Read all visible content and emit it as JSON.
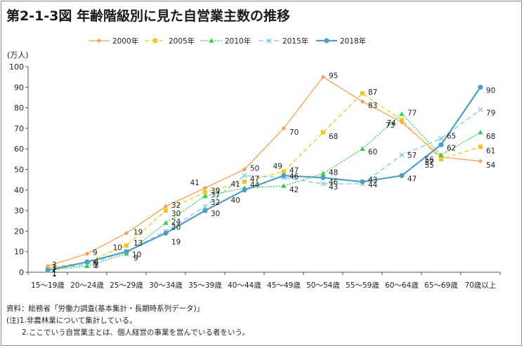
{
  "title": "第2-1-3図 年齢階級別に見た自営業主数の推移",
  "chart_data": {
    "type": "line",
    "ylabel": "(万人)",
    "ylim": [
      0,
      100
    ],
    "yticks": [
      0,
      10,
      20,
      30,
      40,
      50,
      60,
      70,
      80,
      90,
      100
    ],
    "categories": [
      "15～19歳",
      "20～24歳",
      "25～29歳",
      "30～34歳",
      "35～39歳",
      "40～44歳",
      "45～49歳",
      "50～54歳",
      "55～59歳",
      "60～64歳",
      "65～69歳",
      "70歳以上"
    ],
    "legend_position": "top",
    "series": [
      {
        "name": "2000年",
        "color": "#f4a15d",
        "dash": "",
        "marker": "diamond",
        "width": 1.3,
        "values": [
          3,
          9,
          19,
          32,
          41,
          50,
          70,
          95,
          83,
          73,
          56,
          54
        ]
      },
      {
        "name": "2005年",
        "color": "#f7c61b",
        "dash": "6,4",
        "marker": "square",
        "width": 1.3,
        "values": [
          2,
          5,
          13,
          30,
          39,
          44,
          49,
          68,
          87,
          74,
          55,
          61
        ]
      },
      {
        "name": "2010年",
        "color": "#2fd14a",
        "dash": "2,2",
        "marker": "triangle",
        "width": 1.3,
        "values": [
          1,
          3,
          9,
          24,
          37,
          41,
          42,
          48,
          60,
          77,
          57,
          68
        ]
      },
      {
        "name": "2015年",
        "color": "#7fc7e8",
        "dash": "7,4",
        "marker": "x",
        "width": 1.3,
        "values": [
          1,
          4,
          10,
          20,
          32,
          47,
          46,
          43,
          43,
          57,
          65,
          79
        ]
      },
      {
        "name": "2018年",
        "color": "#4f9ec4",
        "dash": "",
        "marker": "circle",
        "width": 2.2,
        "values": [
          1,
          5,
          10,
          19,
          30,
          40,
          47,
          46,
          44,
          47,
          62,
          90
        ]
      }
    ]
  },
  "notes": [
    "資料：総務省「労働力調査(基本集計・長期時系列データ)」",
    "(注)1.非農林業について集計している。",
    "2.ここでいう自営業主とは、個人経営の事業を営んでいる者をいう。"
  ]
}
